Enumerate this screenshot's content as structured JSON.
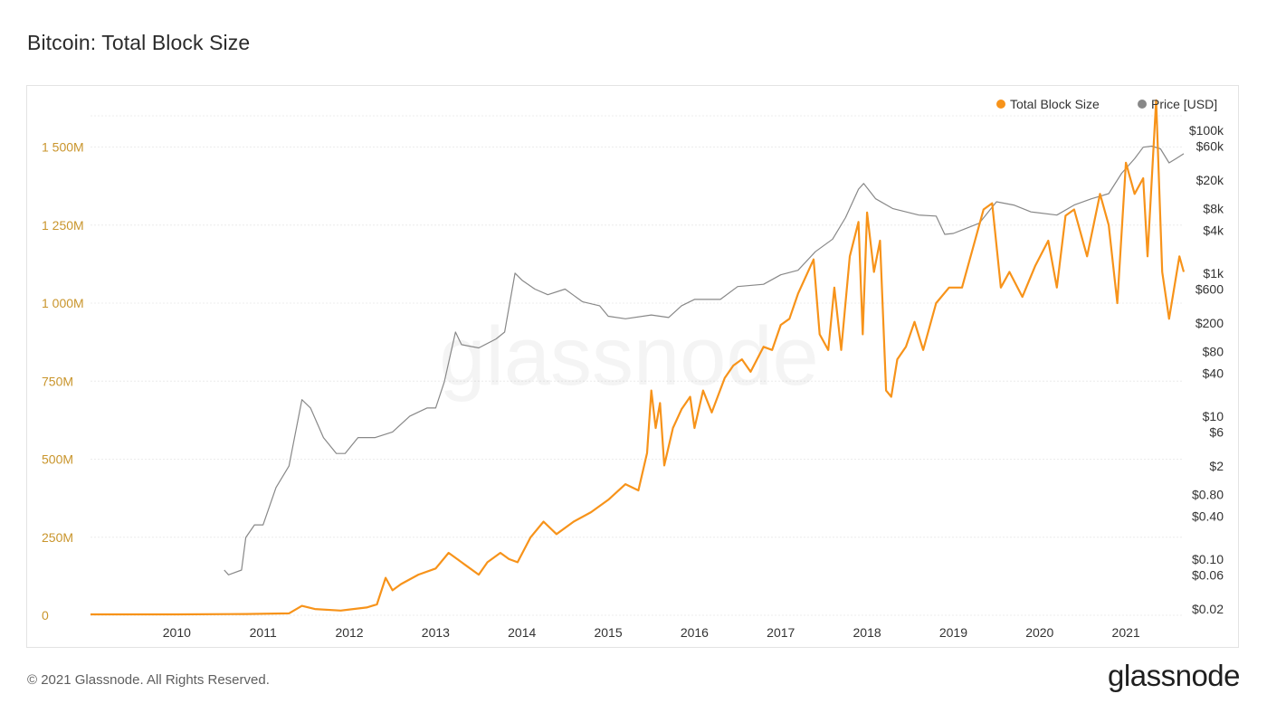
{
  "title": "Bitcoin: Total Block Size",
  "footer": "© 2021 Glassnode. All Rights Reserved.",
  "brand": "glassnode",
  "watermark": "glassnode",
  "colors": {
    "block_size": "#f7931a",
    "price": "#888888",
    "left_axis": "#c9952c",
    "grid": "#ececec"
  },
  "chart_data": {
    "type": "line",
    "title": "Bitcoin: Total Block Size",
    "x_ticks": [
      "2010",
      "2011",
      "2012",
      "2013",
      "2014",
      "2015",
      "2016",
      "2017",
      "2018",
      "2019",
      "2020",
      "2021"
    ],
    "x_range": [
      2009.0,
      2021.67
    ],
    "y_left": {
      "ticks": [
        "0",
        "250M",
        "500M",
        "750M",
        "1 000M",
        "1 250M",
        "1 500M"
      ],
      "tick_values": [
        0,
        250,
        500,
        750,
        1000,
        1250,
        1500
      ],
      "unit": "M",
      "range": [
        0,
        1600
      ]
    },
    "y_right": {
      "scale": "log",
      "ticks": [
        "$0.02",
        "$0.06",
        "$0.10",
        "$0.40",
        "$0.80",
        "$2",
        "$6",
        "$10",
        "$40",
        "$80",
        "$200",
        "$600",
        "$1k",
        "$4k",
        "$8k",
        "$20k",
        "$60k",
        "$100k"
      ],
      "tick_values": [
        0.02,
        0.06,
        0.1,
        0.4,
        0.8,
        2,
        6,
        10,
        40,
        80,
        200,
        600,
        1000,
        4000,
        8000,
        20000,
        60000,
        100000
      ]
    },
    "legend": {
      "placement": "top-right",
      "entries": [
        "Total Block Size",
        "Price [USD]"
      ]
    },
    "series": [
      {
        "name": "Total Block Size",
        "axis": "left",
        "x": [
          2009.0,
          2010.0,
          2010.8,
          2011.3,
          2011.45,
          2011.6,
          2011.9,
          2012.2,
          2012.32,
          2012.42,
          2012.5,
          2012.6,
          2012.8,
          2013.0,
          2013.15,
          2013.25,
          2013.35,
          2013.5,
          2013.6,
          2013.75,
          2013.85,
          2013.95,
          2014.1,
          2014.25,
          2014.4,
          2014.6,
          2014.8,
          2015.0,
          2015.2,
          2015.35,
          2015.45,
          2015.5,
          2015.55,
          2015.6,
          2015.65,
          2015.75,
          2015.85,
          2015.95,
          2016.0,
          2016.1,
          2016.2,
          2016.35,
          2016.45,
          2016.55,
          2016.65,
          2016.8,
          2016.9,
          2017.0,
          2017.1,
          2017.2,
          2017.38,
          2017.45,
          2017.55,
          2017.62,
          2017.7,
          2017.8,
          2017.9,
          2017.95,
          2018.0,
          2018.08,
          2018.15,
          2018.22,
          2018.28,
          2018.35,
          2018.45,
          2018.55,
          2018.65,
          2018.8,
          2018.95,
          2019.1,
          2019.25,
          2019.35,
          2019.45,
          2019.55,
          2019.65,
          2019.8,
          2019.95,
          2020.1,
          2020.2,
          2020.3,
          2020.4,
          2020.55,
          2020.7,
          2020.8,
          2020.9,
          2021.0,
          2021.1,
          2021.2,
          2021.25,
          2021.35,
          2021.42,
          2021.5,
          2021.56,
          2021.62,
          2021.67
        ],
        "values": [
          3,
          3,
          4,
          6,
          30,
          20,
          15,
          25,
          35,
          120,
          80,
          100,
          130,
          150,
          200,
          180,
          160,
          130,
          170,
          200,
          180,
          170,
          250,
          300,
          260,
          300,
          330,
          370,
          420,
          400,
          520,
          720,
          600,
          680,
          480,
          600,
          660,
          700,
          600,
          720,
          650,
          760,
          800,
          820,
          780,
          860,
          850,
          930,
          950,
          1030,
          1140,
          900,
          850,
          1050,
          850,
          1150,
          1260,
          900,
          1290,
          1100,
          1200,
          720,
          700,
          820,
          860,
          940,
          850,
          1000,
          1050,
          1050,
          1200,
          1300,
          1320,
          1050,
          1100,
          1020,
          1120,
          1200,
          1050,
          1280,
          1300,
          1150,
          1350,
          1250,
          1000,
          1450,
          1350,
          1400,
          1150,
          1650,
          1100,
          950,
          1050,
          1150,
          1100
        ]
      },
      {
        "name": "Price [USD]",
        "axis": "right",
        "x": [
          2010.55,
          2010.6,
          2010.75,
          2010.8,
          2010.9,
          2011.0,
          2011.15,
          2011.3,
          2011.45,
          2011.55,
          2011.7,
          2011.85,
          2011.95,
          2012.1,
          2012.3,
          2012.5,
          2012.7,
          2012.9,
          2013.0,
          2013.1,
          2013.23,
          2013.3,
          2013.5,
          2013.7,
          2013.8,
          2013.92,
          2014.0,
          2014.15,
          2014.3,
          2014.5,
          2014.7,
          2014.9,
          2015.0,
          2015.2,
          2015.5,
          2015.7,
          2015.85,
          2016.0,
          2016.3,
          2016.5,
          2016.8,
          2017.0,
          2017.2,
          2017.4,
          2017.6,
          2017.75,
          2017.9,
          2017.96,
          2018.1,
          2018.3,
          2018.6,
          2018.8,
          2018.9,
          2019.0,
          2019.3,
          2019.5,
          2019.7,
          2019.9,
          2020.2,
          2020.4,
          2020.6,
          2020.8,
          2020.95,
          2021.1,
          2021.2,
          2021.3,
          2021.4,
          2021.5,
          2021.58,
          2021.67
        ],
        "values": [
          0.07,
          0.06,
          0.07,
          0.2,
          0.3,
          0.3,
          1,
          2,
          17,
          13,
          5,
          3,
          3,
          5,
          5,
          6,
          10,
          13,
          13,
          30,
          150,
          100,
          90,
          120,
          150,
          1000,
          800,
          600,
          500,
          600,
          400,
          350,
          250,
          230,
          260,
          240,
          350,
          430,
          430,
          650,
          700,
          950,
          1100,
          2000,
          3000,
          6000,
          15000,
          18000,
          11000,
          8000,
          6500,
          6300,
          3500,
          3600,
          5000,
          10000,
          9000,
          7200,
          6500,
          9000,
          11000,
          13000,
          25000,
          40000,
          58000,
          60000,
          55000,
          35000,
          40000,
          47000
        ]
      }
    ]
  }
}
